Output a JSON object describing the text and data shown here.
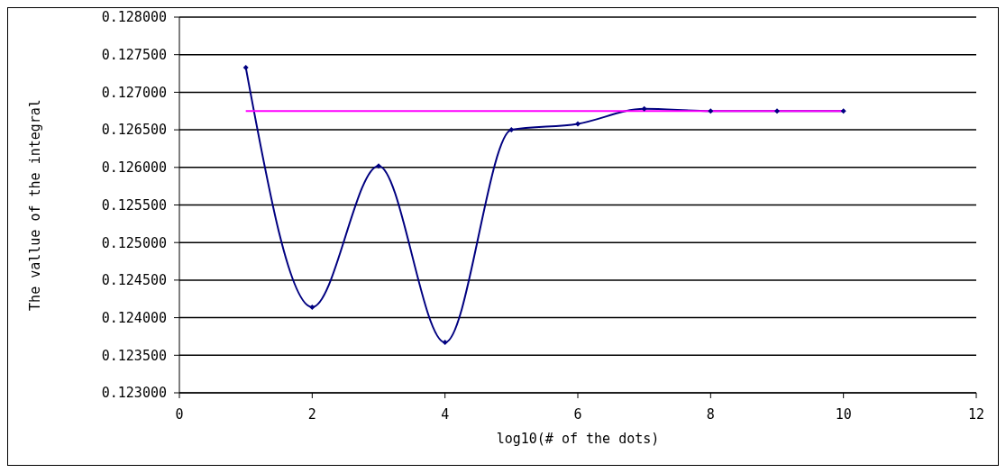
{
  "chart_data": {
    "type": "line",
    "xlabel": "log10(# of the dots)",
    "ylabel": "The vallue of the integral",
    "x": [
      1,
      2,
      3,
      4,
      5,
      6,
      7,
      8,
      9,
      10
    ],
    "series": [
      {
        "color": "#000080",
        "values": [
          0.12733,
          0.12414,
          0.12602,
          0.12367,
          0.1265,
          0.12658,
          0.12678,
          0.12675,
          0.12675,
          0.12675
        ],
        "marker": "diamond"
      },
      {
        "color": "#ff00ff",
        "x": [
          1,
          10
        ],
        "values": [
          0.12675,
          0.12675
        ],
        "marker": "none"
      }
    ],
    "xlim": [
      0,
      12
    ],
    "xticks": [
      0,
      2,
      4,
      6,
      8,
      10,
      12
    ],
    "ylim": [
      0.123,
      0.128
    ],
    "yticks": [
      {
        "value": 0.123,
        "label": "0.123000"
      },
      {
        "value": 0.1235,
        "label": "0.123500"
      },
      {
        "value": 0.124,
        "label": "0.124000"
      },
      {
        "value": 0.1245,
        "label": "0.124500"
      },
      {
        "value": 0.125,
        "label": "0.125000"
      },
      {
        "value": 0.1255,
        "label": "0.125500"
      },
      {
        "value": 0.126,
        "label": "0.126000"
      },
      {
        "value": 0.1265,
        "label": "0.126500"
      },
      {
        "value": 0.127,
        "label": "0.127000"
      },
      {
        "value": 0.1275,
        "label": "0.127500"
      },
      {
        "value": 0.128,
        "label": "0.128000"
      }
    ],
    "grid": "y",
    "line_style": "solid"
  }
}
